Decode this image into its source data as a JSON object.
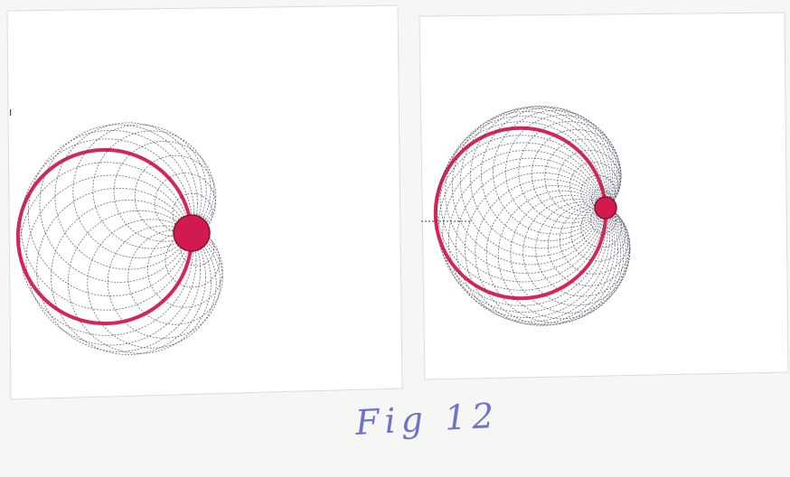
{
  "caption": "Fig 12",
  "colors": {
    "background": "#f6f6f4",
    "paper": "#ffffff",
    "ink": "#3a3f52",
    "red": "#d21a4e",
    "caption_ink": "#6d74c8"
  },
  "figures": [
    {
      "name": "left-drawing",
      "circle_count": 24
    },
    {
      "name": "right-drawing",
      "circle_count": 36
    }
  ]
}
